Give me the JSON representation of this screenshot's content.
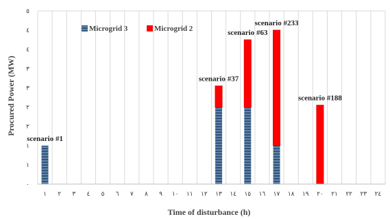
{
  "chart_data": {
    "type": "bar",
    "stacked": true,
    "xlabel": "Time of disturbance (h)",
    "ylabel": "Procured Power (MW)",
    "x_tick_labels": [
      "١",
      "٢",
      "٣",
      "٤",
      "٥",
      "٦",
      "٧",
      "٨",
      "٩",
      "١٠",
      "١١",
      "١٢",
      "١٣",
      "١٤",
      "١٥",
      "١٦",
      "١٧",
      "١٨",
      "١٩",
      "٢٠",
      "٢١",
      "٢٢",
      "٢٣",
      "٢٤"
    ],
    "y_tick_labels": [
      "٠",
      "١",
      "١",
      "٢",
      "٢",
      "٣",
      "٣",
      "٤",
      "٤",
      "٥"
    ],
    "ylim": [
      0,
      4.5
    ],
    "grid": "vertical",
    "legend_position": "top-left",
    "series": [
      {
        "name": "Microgrid 3",
        "color": "#2e5680",
        "pattern": "horizontal-stripes",
        "values": [
          1,
          0,
          0,
          0,
          0,
          0,
          0,
          0,
          0,
          0,
          0,
          0,
          2,
          0,
          2,
          0,
          1,
          0,
          0,
          0,
          0,
          0,
          0,
          0
        ]
      },
      {
        "name": "Microgrid 2",
        "color": "#ff0000",
        "values": [
          0,
          0,
          0,
          0,
          0,
          0,
          0,
          0,
          0,
          0,
          0,
          0,
          0.55,
          0,
          1.75,
          0,
          3,
          0,
          0,
          2.05,
          0,
          0,
          0,
          0
        ]
      }
    ],
    "annotations": [
      {
        "x": 1,
        "text": "scenario #1"
      },
      {
        "x": 13,
        "text": "scenario #37"
      },
      {
        "x": 15,
        "text": "scenario #63"
      },
      {
        "x": 17,
        "text": "scenario #233"
      },
      {
        "x": 20,
        "text": "scenario #188"
      }
    ]
  }
}
